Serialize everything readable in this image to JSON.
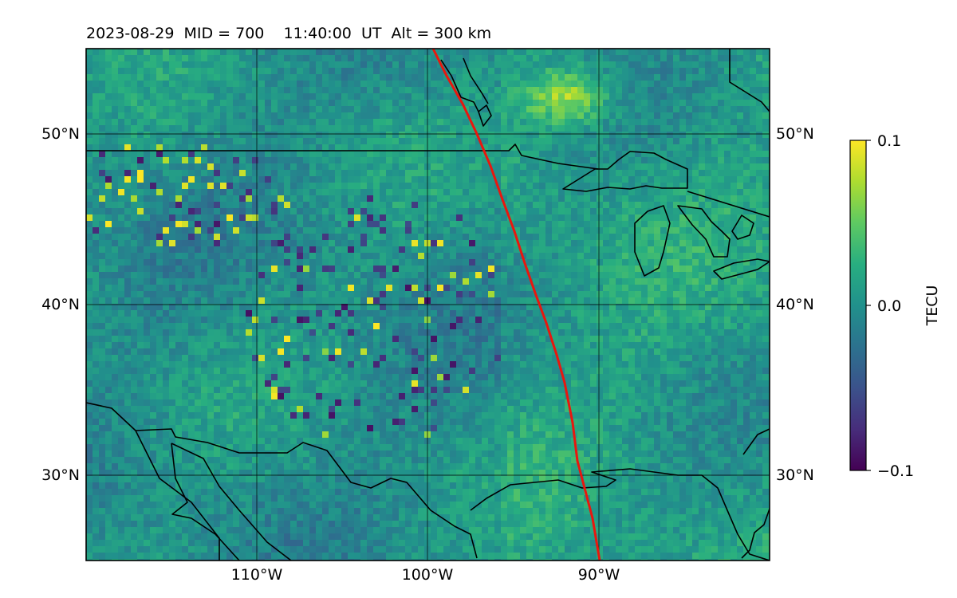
{
  "figure": {
    "title": "2023-08-29  MID = 700    11:40:00  UT  Alt = 300 km"
  },
  "map": {
    "lat_range": [
      25,
      55
    ],
    "lon_range": [
      -120,
      -80
    ],
    "gridlines": true,
    "lat_ticks": [
      {
        "value": 30,
        "label": "30°N"
      },
      {
        "value": 40,
        "label": "40°N"
      },
      {
        "value": 50,
        "label": "50°N"
      }
    ],
    "lon_ticks": [
      {
        "value": -110,
        "label": "110°W"
      },
      {
        "value": -100,
        "label": "100°W"
      },
      {
        "value": -90,
        "label": "90°W"
      }
    ],
    "terminator_color": "#e8170f",
    "coastline_color": "#000000",
    "colormap": "viridis"
  },
  "colorbar": {
    "label": "TECU",
    "vmin": -0.1,
    "vmax": 0.1,
    "ticks": [
      {
        "value": 0.1,
        "label": "0.1"
      },
      {
        "value": 0.0,
        "label": "0.0"
      },
      {
        "value": -0.1,
        "label": "−0.1"
      }
    ]
  }
}
